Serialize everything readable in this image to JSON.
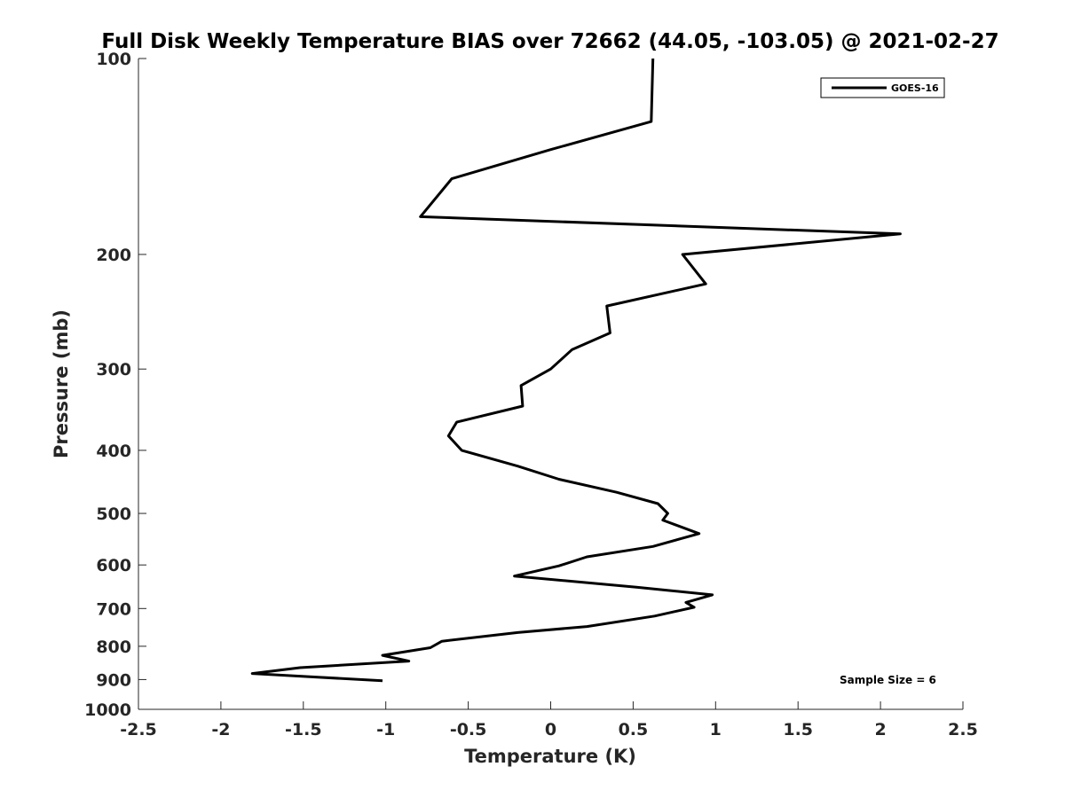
{
  "chart_data": {
    "type": "line",
    "title": "Full Disk Weekly Temperature BIAS over 72662 (44.05, -103.05) @ 2021-02-27",
    "xlabel": "Temperature (K)",
    "ylabel": "Pressure (mb)",
    "xlim": [
      -2.5,
      2.5
    ],
    "ylim": [
      100,
      1000
    ],
    "y_scale": "log",
    "y_reversed": true,
    "x_ticks": [
      "-2.5",
      "-2",
      "-1.5",
      "-1",
      "-0.5",
      "0",
      "0.5",
      "1",
      "1.5",
      "2",
      "2.5"
    ],
    "y_ticks": [
      "100",
      "200",
      "300",
      "400",
      "500",
      "600",
      "700",
      "800",
      "900",
      "1000"
    ],
    "grid": false,
    "legend_position": "top-right",
    "series": [
      {
        "name": "GOES-16",
        "color": "#000000",
        "points": [
          {
            "x": 0.62,
            "y": 100
          },
          {
            "x": 0.61,
            "y": 125
          },
          {
            "x": 0.0,
            "y": 138
          },
          {
            "x": -0.6,
            "y": 153
          },
          {
            "x": -0.79,
            "y": 175
          },
          {
            "x": 2.12,
            "y": 186
          },
          {
            "x": 0.8,
            "y": 200
          },
          {
            "x": 0.94,
            "y": 222
          },
          {
            "x": 0.34,
            "y": 240
          },
          {
            "x": 0.36,
            "y": 264
          },
          {
            "x": 0.13,
            "y": 280
          },
          {
            "x": 0.0,
            "y": 300
          },
          {
            "x": -0.18,
            "y": 318
          },
          {
            "x": -0.17,
            "y": 342
          },
          {
            "x": -0.57,
            "y": 362
          },
          {
            "x": -0.62,
            "y": 380
          },
          {
            "x": -0.54,
            "y": 400
          },
          {
            "x": -0.2,
            "y": 423
          },
          {
            "x": 0.05,
            "y": 443
          },
          {
            "x": 0.4,
            "y": 464
          },
          {
            "x": 0.65,
            "y": 483
          },
          {
            "x": 0.71,
            "y": 500
          },
          {
            "x": 0.68,
            "y": 512
          },
          {
            "x": 0.9,
            "y": 537
          },
          {
            "x": 0.62,
            "y": 562
          },
          {
            "x": 0.22,
            "y": 583
          },
          {
            "x": 0.05,
            "y": 602
          },
          {
            "x": -0.22,
            "y": 624
          },
          {
            "x": 0.52,
            "y": 649
          },
          {
            "x": 0.98,
            "y": 667
          },
          {
            "x": 0.82,
            "y": 685
          },
          {
            "x": 0.87,
            "y": 697
          },
          {
            "x": 0.63,
            "y": 719
          },
          {
            "x": 0.22,
            "y": 746
          },
          {
            "x": -0.2,
            "y": 762
          },
          {
            "x": -0.66,
            "y": 786
          },
          {
            "x": -0.73,
            "y": 804
          },
          {
            "x": -1.02,
            "y": 826
          },
          {
            "x": -0.86,
            "y": 843
          },
          {
            "x": -1.52,
            "y": 863
          },
          {
            "x": -1.81,
            "y": 881
          },
          {
            "x": -1.02,
            "y": 904
          }
        ]
      }
    ],
    "annotation": "Sample Size = 6"
  }
}
